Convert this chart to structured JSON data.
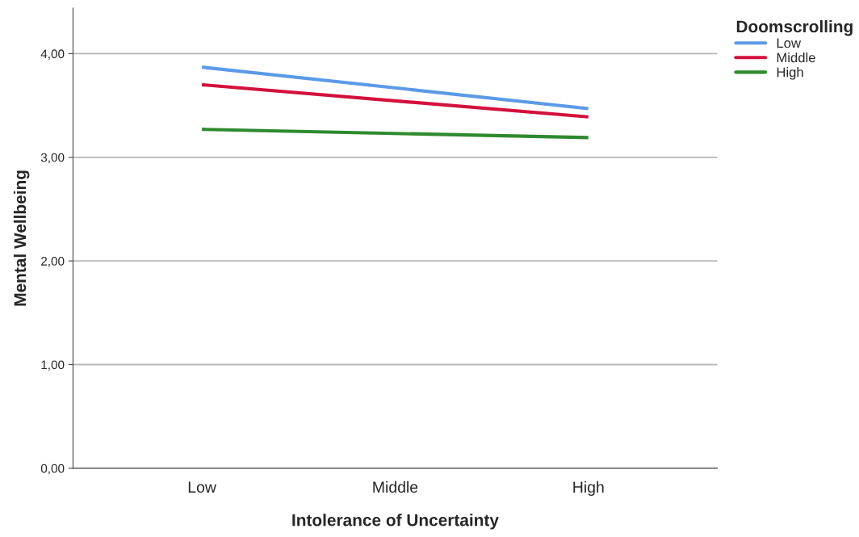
{
  "chart_data": {
    "type": "line",
    "xlabel": "Intolerance of Uncertainty",
    "ylabel": "Mental Wellbeing",
    "legend_title": "Doomscrolling",
    "categories": [
      "Low",
      "Middle",
      "High"
    ],
    "series": [
      {
        "name": "Low",
        "color": "#5b9ae8",
        "values": [
          3.87,
          null,
          3.47
        ]
      },
      {
        "name": "Middle",
        "color": "#d4103c",
        "values": [
          3.7,
          null,
          3.39
        ]
      },
      {
        "name": "High",
        "color": "#2e8a2e",
        "values": [
          3.27,
          null,
          3.19
        ]
      }
    ],
    "ylim": [
      0,
      4.44
    ],
    "yticks": [
      {
        "value": 0,
        "label": "0,00"
      },
      {
        "value": 1,
        "label": "1,00"
      },
      {
        "value": 2,
        "label": "2,00"
      },
      {
        "value": 3,
        "label": "3,00"
      },
      {
        "value": 4,
        "label": "4,00"
      }
    ],
    "grid": "y",
    "legend": "top right",
    "marker": "none",
    "line_style": "solid"
  }
}
